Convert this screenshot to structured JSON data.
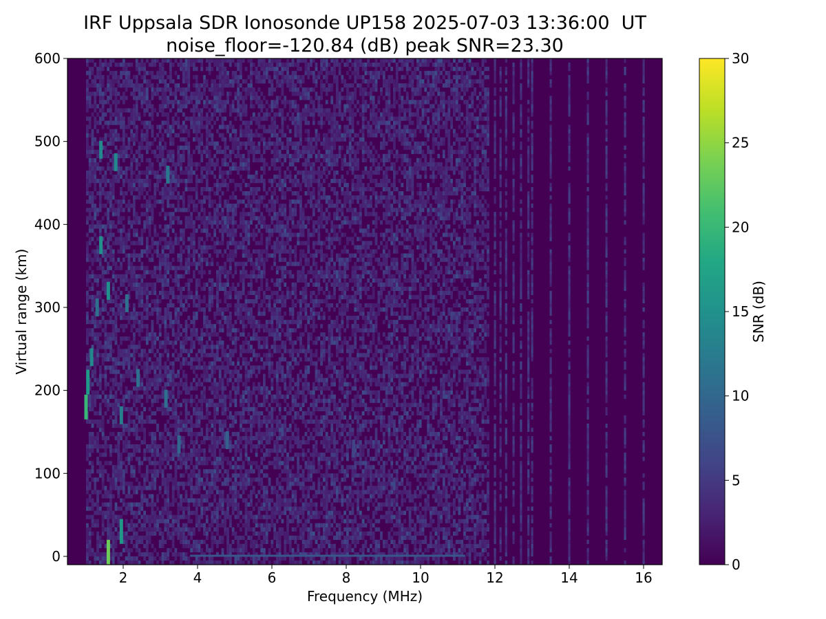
{
  "chart_data": {
    "type": "heatmap",
    "title": "IRF Uppsala SDR Ionosonde UP158 2025-07-03 13:36:00  UT",
    "subtitle": "noise_floor=-120.84 (dB) peak SNR=23.30",
    "xlabel": "Frequency (MHz)",
    "ylabel": "Virtual range (km)",
    "xlim": [
      0.5,
      16.5
    ],
    "ylim": [
      -10,
      600
    ],
    "xticks": [
      2,
      4,
      6,
      8,
      10,
      12,
      14,
      16
    ],
    "yticks": [
      0,
      100,
      200,
      300,
      400,
      500,
      600
    ],
    "colorbar": {
      "label": "SNR (dB)",
      "range": [
        0,
        30
      ],
      "ticks": [
        0,
        5,
        10,
        15,
        20,
        25,
        30
      ],
      "colormap": "viridis"
    },
    "background_value_db": 1.5,
    "data_start_mhz": 1.0,
    "low_noise_start_mhz": 11.8,
    "sparse_columns_mhz": [
      12.0,
      12.15,
      12.3,
      12.5,
      12.7,
      12.9,
      13.0,
      13.5,
      14.0,
      14.5,
      15.0,
      15.5,
      16.0
    ],
    "notable_echoes": [
      {
        "freq_mhz": 1.0,
        "range_km": 180,
        "snr_db": 20
      },
      {
        "freq_mhz": 1.05,
        "range_km": 210,
        "snr_db": 16
      },
      {
        "freq_mhz": 1.15,
        "range_km": 240,
        "snr_db": 14
      },
      {
        "freq_mhz": 1.3,
        "range_km": 300,
        "snr_db": 11
      },
      {
        "freq_mhz": 1.4,
        "range_km": 375,
        "snr_db": 15
      },
      {
        "freq_mhz": 1.4,
        "range_km": 490,
        "snr_db": 14
      },
      {
        "freq_mhz": 1.6,
        "range_km": 320,
        "snr_db": 15
      },
      {
        "freq_mhz": 1.6,
        "range_km": 5,
        "snr_db": 23.3
      },
      {
        "freq_mhz": 1.8,
        "range_km": 475,
        "snr_db": 14
      },
      {
        "freq_mhz": 1.95,
        "range_km": 30,
        "snr_db": 16
      },
      {
        "freq_mhz": 1.95,
        "range_km": 170,
        "snr_db": 13
      },
      {
        "freq_mhz": 2.1,
        "range_km": 305,
        "snr_db": 11
      },
      {
        "freq_mhz": 2.4,
        "range_km": 215,
        "snr_db": 11
      },
      {
        "freq_mhz": 3.15,
        "range_km": 190,
        "snr_db": 11
      },
      {
        "freq_mhz": 3.2,
        "range_km": 460,
        "snr_db": 12
      },
      {
        "freq_mhz": 3.5,
        "range_km": 135,
        "snr_db": 10
      },
      {
        "freq_mhz": 4.8,
        "range_km": 140,
        "snr_db": 9
      },
      {
        "freq_mhz": 8.2,
        "range_km": 130,
        "snr_db": 6
      }
    ],
    "ground_trace": {
      "range_km": 0,
      "from_mhz": 3.8,
      "to_mhz": 11.2,
      "snr_db": 8
    }
  }
}
